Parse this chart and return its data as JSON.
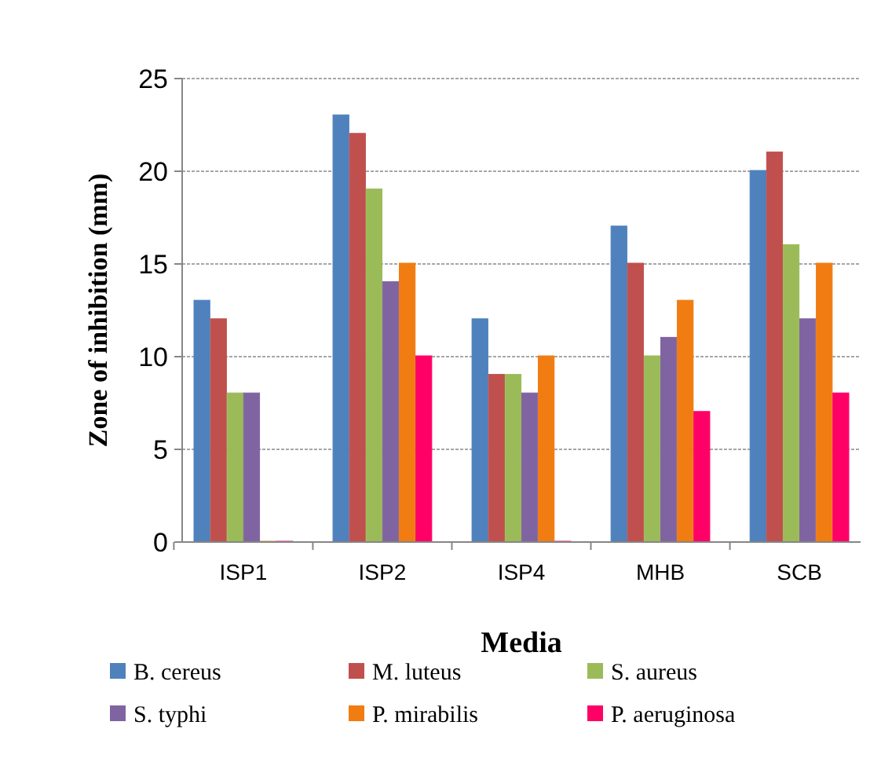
{
  "chart_data": {
    "type": "bar",
    "xlabel": "Media",
    "ylabel": "Zone of inhibition (mm)",
    "categories": [
      "ISP1",
      "ISP2",
      "ISP4",
      "MHB",
      "SCB"
    ],
    "series": [
      {
        "name": "B. cereus",
        "color": "#4f81bd",
        "values": [
          13,
          23,
          12,
          17,
          20
        ]
      },
      {
        "name": "M. luteus",
        "color": "#c0504d",
        "values": [
          12,
          22,
          9,
          15,
          21
        ]
      },
      {
        "name": "S. aureus",
        "color": "#9bbb59",
        "values": [
          8,
          19,
          9,
          10,
          16
        ]
      },
      {
        "name": "S. typhi",
        "color": "#8064a2",
        "values": [
          8,
          14,
          8,
          11,
          12
        ]
      },
      {
        "name": "P. mirabilis",
        "color": "#f07c12",
        "values": [
          0,
          15,
          10,
          13,
          15
        ]
      },
      {
        "name": "P. aeruginosa",
        "color": "#ff0066",
        "values": [
          0,
          10,
          0,
          7,
          8
        ]
      }
    ],
    "ylim": [
      0,
      25
    ],
    "yticks": [
      0,
      5,
      10,
      15,
      20,
      25
    ],
    "grid": "y",
    "legend": "bottom"
  }
}
